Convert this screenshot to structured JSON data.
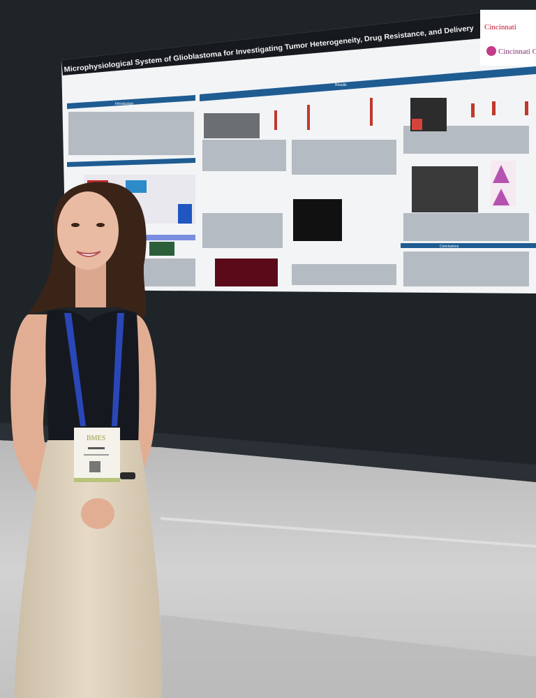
{
  "scene": {
    "description_tags": [
      "poster-session",
      "presenter",
      "wall",
      "floor"
    ],
    "colors": {
      "wall": "#1f2429",
      "floor": "#c9c9c9",
      "poster_bg": "#f3f4f6",
      "poster_header_blue": "#1e5c92",
      "top": "#15191f",
      "skirt": "#dccfba",
      "lanyard": "#2a47b8",
      "skin": "#e6b59c",
      "hair": "#3a2418"
    }
  },
  "poster": {
    "title": "Microphysiological System of Glioblastoma for Investigating Tumor Heterogeneity, Drug Resistance, and Delivery",
    "sections": [
      "Introduction",
      "Results",
      "Conclusions"
    ],
    "logos": [
      "Cincinnati",
      "Cincinnati Children's"
    ]
  },
  "badge": {
    "event_logo": "BMES"
  }
}
